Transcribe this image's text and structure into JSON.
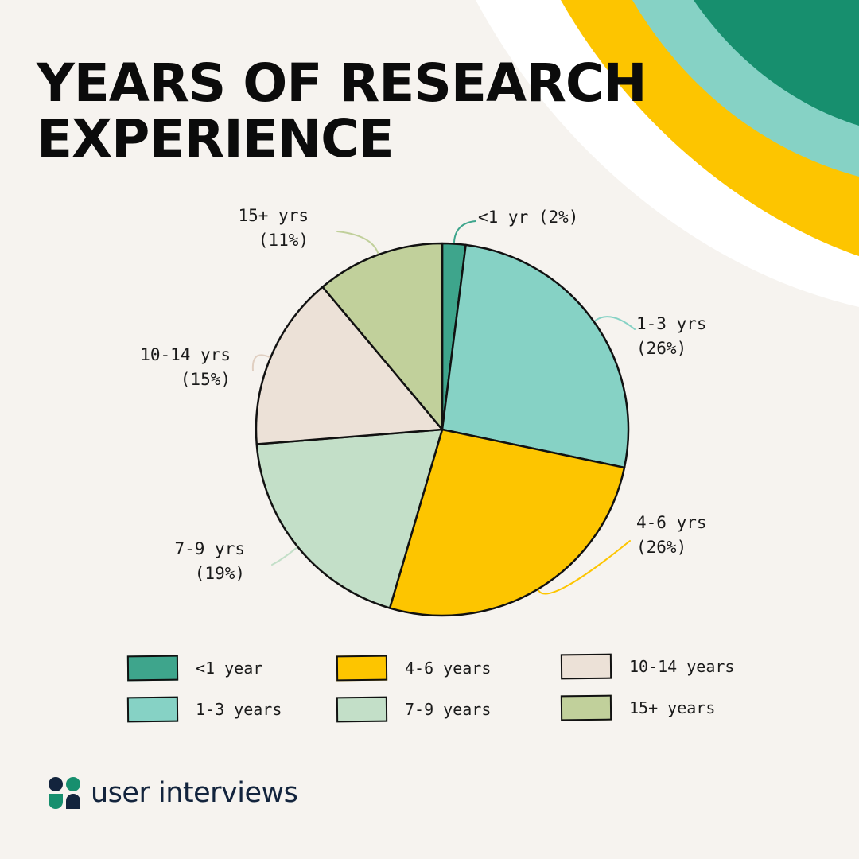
{
  "title_lines": [
    "YEARS OF RESEARCH",
    "EXPERIENCE"
  ],
  "brand": {
    "name": "user interviews",
    "logo_icon": "user-interviews-logo"
  },
  "colors": {
    "background": "#f6f3ef",
    "lt1": "#3ea58c",
    "y1_3": "#86d2c5",
    "y4_6": "#fdc500",
    "y7_9": "#c3dfc8",
    "y10_14": "#ece1d7",
    "y15p": "#c1d09b",
    "deco_green": "#178f6e",
    "deco_teal": "#86d2c5",
    "deco_yellow": "#fdc500",
    "outline": "#111111"
  },
  "slice_labels": [
    {
      "line1": "<1 yr (2%)",
      "line2": ""
    },
    {
      "line1": "1-3 yrs",
      "line2": "(26%)"
    },
    {
      "line1": "4-6 yrs",
      "line2": "(26%)"
    },
    {
      "line1": "7-9 yrs",
      "line2": "(19%)"
    },
    {
      "line1": "10-14 yrs",
      "line2": "(15%)"
    },
    {
      "line1": "15+ yrs",
      "line2": "(11%)"
    }
  ],
  "legend": [
    {
      "label": "<1 year",
      "color": "#3ea58c"
    },
    {
      "label": "1-3 years",
      "color": "#86d2c5"
    },
    {
      "label": "4-6 years",
      "color": "#fdc500"
    },
    {
      "label": "7-9 years",
      "color": "#c3dfc8"
    },
    {
      "label": "10-14 years",
      "color": "#ece1d7"
    },
    {
      "label": "15+ years",
      "color": "#c1d09b"
    }
  ],
  "chart_data": {
    "type": "pie",
    "title": "YEARS OF RESEARCH EXPERIENCE",
    "unit": "%",
    "categories": [
      "<1 year",
      "1-3 years",
      "4-6 years",
      "7-9 years",
      "10-14 years",
      "15+ years"
    ],
    "values": [
      2,
      26,
      26,
      19,
      15,
      11
    ],
    "colors": [
      "#3ea58c",
      "#86d2c5",
      "#fdc500",
      "#c3dfc8",
      "#ece1d7",
      "#c1d09b"
    ],
    "start": "top, clockwise",
    "legend_position": "bottom"
  }
}
